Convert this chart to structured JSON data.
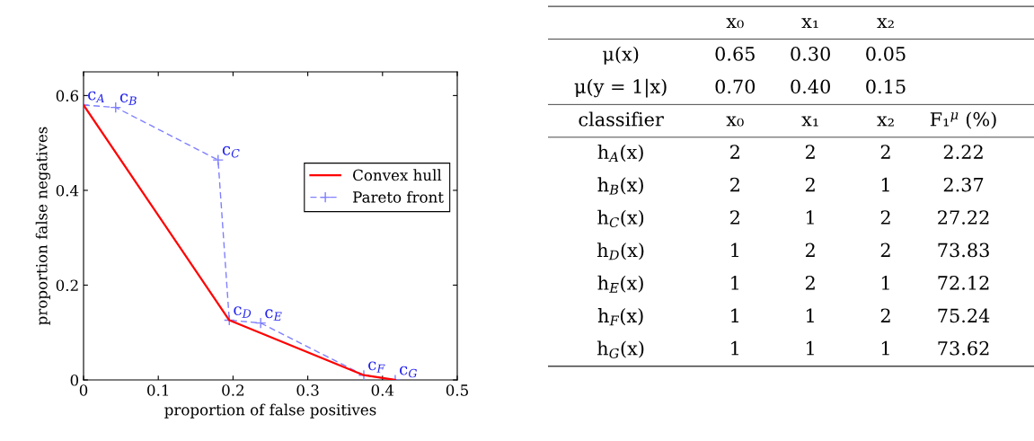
{
  "chart_data": [
    {
      "type": "line",
      "xlabel": "proportion of false positives",
      "ylabel": "proportion false negatives",
      "xlim": [
        0,
        0.5
      ],
      "ylim": [
        0,
        0.65
      ],
      "xticks": [
        0,
        0.1,
        0.2,
        0.3,
        0.4,
        0.5
      ],
      "yticks": [
        0,
        0.2,
        0.4,
        0.6
      ],
      "grid": false,
      "legend": "right",
      "series": [
        {
          "name": "Convex hull",
          "color": "#ff0000",
          "line_style": "solid",
          "marker": "none",
          "x": [
            0,
            0.195,
            0.375,
            0.417
          ],
          "values": [
            0.58,
            0.126,
            0.01,
            0
          ]
        },
        {
          "name": "Pareto front",
          "color": "#7f7fff",
          "line_style": "dashed",
          "marker": "cross",
          "x": [
            0,
            0.043,
            0.18,
            0.195,
            0.237,
            0.375,
            0.417
          ],
          "values": [
            0.58,
            0.575,
            0.464,
            0.126,
            0.12,
            0.01,
            0
          ]
        }
      ],
      "annotations": [
        {
          "text": "c$_{A}$",
          "x": 0,
          "y": 0.58
        },
        {
          "text": "c$_{B}$",
          "x": 0.043,
          "y": 0.575
        },
        {
          "text": "c$_{C}$",
          "x": 0.18,
          "y": 0.464
        },
        {
          "text": "c$_{D}$",
          "x": 0.195,
          "y": 0.126
        },
        {
          "text": "c$_{E}$",
          "x": 0.237,
          "y": 0.12
        },
        {
          "text": "c$_{F}$",
          "x": 0.375,
          "y": 0.01
        },
        {
          "text": "c$_{G}$",
          "x": 0.417,
          "y": 0
        }
      ]
    },
    {
      "type": "other",
      "categories": [
        "x₀",
        "x₁",
        "x₂",
        null
      ],
      "y_categories": [
        "μ(x)",
        "μ(y = 1|x)",
        "classifier",
        "h$_{A}$(x)",
        "h$_{B}$(x)",
        "h$_{C}$(x)",
        "h$_{D}$(x)",
        "h$_{E}$(x)",
        "h$_{F}$(x)",
        "h$_{G}$(x)"
      ],
      "cell_labels": [
        [
          "0.65",
          "0.30",
          "0.05",
          null
        ],
        [
          "0.70",
          "0.40",
          "0.15",
          null
        ],
        [
          "x₀",
          "x₁",
          "x₂",
          "F₁$^{μ}$ (%)"
        ],
        [
          "2",
          "2",
          "2",
          "2.22"
        ],
        [
          "2",
          "2",
          "1",
          "2.37"
        ],
        [
          "2",
          "1",
          "2",
          "27.22"
        ],
        [
          "1",
          "2",
          "2",
          "73.83"
        ],
        [
          "1",
          "2",
          "1",
          "72.12"
        ],
        [
          "1",
          "1",
          "2",
          "75.24"
        ],
        [
          "1",
          "1",
          "1",
          "73.62"
        ]
      ]
    }
  ]
}
